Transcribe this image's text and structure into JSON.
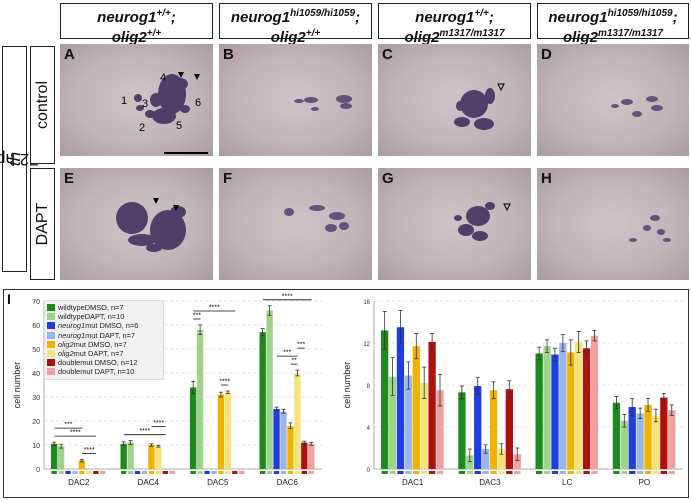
{
  "headers": [
    {
      "gene1": "neurog1",
      "sup1": "+/+",
      "gene2": "olig2",
      "sup2": "+/+"
    },
    {
      "gene1": "neurog1",
      "sup1": "hi1059/hi1059",
      "gene2": "olig2",
      "sup2": "+/+"
    },
    {
      "gene1": "neurog1",
      "sup1": "+/+",
      "gene2": "olig2",
      "sup2": "m1317/m1317"
    },
    {
      "gene1": "neurog1",
      "sup1": "hi1059/hi1059",
      "gene2": "olig2",
      "sup2": "m1317/m1317"
    }
  ],
  "side_label": {
    "stage": "72 hpf",
    "marker": "th"
  },
  "row_labels": [
    "control",
    "DAPT"
  ],
  "panel_letters": [
    "A",
    "B",
    "C",
    "D",
    "E",
    "F",
    "G",
    "H"
  ],
  "panel_a_numbers": [
    "1",
    "2",
    "3",
    "4",
    "5",
    "6"
  ],
  "panel_i_letter": "I",
  "colors": {
    "green": "#1e8a1e",
    "light_green": "#9ed48a",
    "blue": "#1f3de0",
    "light_blue": "#9ab6e8",
    "orange": "#f0b400",
    "light_orange": "#f7e27a",
    "red": "#b01010",
    "pink": "#f0a0a0"
  },
  "legend": [
    {
      "genotype": "wildtype",
      "italic": false,
      "rest": " DMSO, n=7",
      "color": "#1e8a1e"
    },
    {
      "genotype": "wildtype",
      "italic": false,
      "rest": " DAPT, n=10",
      "color": "#9ed48a"
    },
    {
      "genotype": "neurog1",
      "italic": true,
      "rest": " mut DMSO, n=6",
      "color": "#1f3de0"
    },
    {
      "genotype": "neurog1",
      "italic": true,
      "rest": " mut DAPT, n=7",
      "color": "#9ab6e8"
    },
    {
      "genotype": "olig2",
      "italic": true,
      "rest": " mut DMSO, n=7",
      "color": "#f0b400"
    },
    {
      "genotype": "olig2",
      "italic": true,
      "rest": " mut DAPT, n=7",
      "color": "#f7e27a"
    },
    {
      "genotype": "double",
      "italic": false,
      "rest": " mut DMSO, n=12",
      "color": "#b01010"
    },
    {
      "genotype": "double",
      "italic": false,
      "rest": " mut DAPT, n=10",
      "color": "#f0a0a0"
    }
  ],
  "chart_data": [
    {
      "type": "bar",
      "ylabel": "cell number",
      "ylim": [
        0,
        70
      ],
      "yticks": [
        0,
        10,
        20,
        30,
        40,
        50,
        60,
        70
      ],
      "grid": true,
      "legend_position": "top-left",
      "categories": [
        "DAC2",
        "DAC4",
        "DAC5",
        "DAC6"
      ],
      "series": [
        {
          "name": "wildtype DMSO, n=7",
          "values": [
            10.5,
            10.5,
            34,
            57
          ],
          "errors": [
            0.7,
            0.8,
            2.5,
            1.5
          ]
        },
        {
          "name": "wildtype DAPT, n=10",
          "values": [
            9.5,
            11,
            58,
            66
          ],
          "errors": [
            0.8,
            0.8,
            2,
            2
          ]
        },
        {
          "name": "neurog1 mut DMSO, n=6",
          "values": [
            0,
            0,
            0,
            25
          ],
          "errors": [
            0,
            0,
            0,
            0.8
          ]
        },
        {
          "name": "neurog1 mut DAPT, n=7",
          "values": [
            0,
            0,
            0,
            24
          ],
          "errors": [
            0,
            0,
            0,
            0.8
          ]
        },
        {
          "name": "olig2 mut DMSO, n=7",
          "values": [
            3.5,
            10,
            31,
            18
          ],
          "errors": [
            0.5,
            0.5,
            1,
            1.2
          ]
        },
        {
          "name": "olig2 mut DAPT, n=7",
          "values": [
            0,
            9.5,
            32,
            40
          ],
          "errors": [
            0,
            0.4,
            0.5,
            1.2
          ]
        },
        {
          "name": "double mut DMSO, n=12",
          "values": [
            0,
            0,
            0,
            11
          ],
          "errors": [
            0,
            0,
            0,
            0.6
          ]
        },
        {
          "name": "double mut DAPT, n=10",
          "values": [
            0,
            0,
            0,
            10.5
          ],
          "errors": [
            0,
            0,
            0,
            0.6
          ]
        }
      ],
      "significance": [
        {
          "label": "****",
          "group": "DAC2",
          "from": 0,
          "to": 6
        },
        {
          "label": "****",
          "group": "DAC2",
          "from": 4,
          "to": 6
        },
        {
          "label": "***",
          "group": "DAC2",
          "from": 0,
          "to": 4
        },
        {
          "label": "****",
          "group": "DAC4",
          "from": 0,
          "to": 6
        },
        {
          "label": "****",
          "group": "DAC4",
          "from": 4,
          "to": 6
        },
        {
          "label": "***",
          "group": "DAC5",
          "from": 0,
          "to": 1
        },
        {
          "label": "****",
          "group": "DAC5",
          "from": 0,
          "to": 6
        },
        {
          "label": "****",
          "group": "DAC5",
          "from": 4,
          "to": 5
        },
        {
          "label": "****",
          "group": "DAC6",
          "from": 0,
          "to": 7
        },
        {
          "label": "*",
          "group": "DAC6",
          "from": 0,
          "to": 1
        },
        {
          "label": "***",
          "group": "DAC6",
          "from": 0,
          "to": 4
        },
        {
          "label": "***",
          "group": "DAC6",
          "from": 1,
          "to": 6
        },
        {
          "label": "**",
          "group": "DAC6",
          "from": 4,
          "to": 5
        },
        {
          "label": "***",
          "group": "DAC6",
          "from": 2,
          "to": 5
        },
        {
          "label": "***",
          "group": "DAC6",
          "from": 5,
          "to": 6
        }
      ]
    },
    {
      "type": "bar",
      "ylabel": "cell number",
      "ylim": [
        0,
        16
      ],
      "yticks": [
        0,
        4,
        8,
        12,
        16
      ],
      "grid": true,
      "categories": [
        "DAC1",
        "DAC3",
        "LC",
        "PO"
      ],
      "series": [
        {
          "name": "wildtype DMSO, n=7",
          "values": [
            13.2,
            7.3,
            11,
            6.3
          ],
          "errors": [
            1.8,
            0.6,
            0.6,
            0.6
          ]
        },
        {
          "name": "wildtype DAPT, n=10",
          "values": [
            8.8,
            1.3,
            11.7,
            4.6
          ],
          "errors": [
            1.8,
            0.6,
            0.6,
            0.6
          ]
        },
        {
          "name": "neurog1 mut DMSO, n=6",
          "values": [
            13.5,
            7.9,
            10.9,
            5.9
          ],
          "errors": [
            1.6,
            0.8,
            0.6,
            0.8
          ]
        },
        {
          "name": "neurog1 mut DAPT, n=7",
          "values": [
            8.9,
            1.9,
            12,
            5.3
          ],
          "errors": [
            1.3,
            0.4,
            0.8,
            0.5
          ]
        },
        {
          "name": "olig2 mut DMSO, n=7",
          "values": [
            11.7,
            7.5,
            11.1,
            6.1
          ],
          "errors": [
            1.2,
            0.8,
            1.2,
            0.6
          ]
        },
        {
          "name": "olig2 mut DAPT, n=7",
          "values": [
            8.2,
            1.9,
            12.1,
            5.1
          ],
          "errors": [
            1.5,
            0.5,
            1.0,
            0.6
          ]
        },
        {
          "name": "double mut DMSO, n=12",
          "values": [
            12.1,
            7.6,
            11.5,
            6.8
          ],
          "errors": [
            0.8,
            0.8,
            0.7,
            0.4
          ]
        },
        {
          "name": "double mut DAPT, n=10",
          "values": [
            7.5,
            1.4,
            12.7,
            5.6
          ],
          "errors": [
            1.5,
            0.6,
            0.5,
            0.5
          ]
        }
      ]
    }
  ]
}
